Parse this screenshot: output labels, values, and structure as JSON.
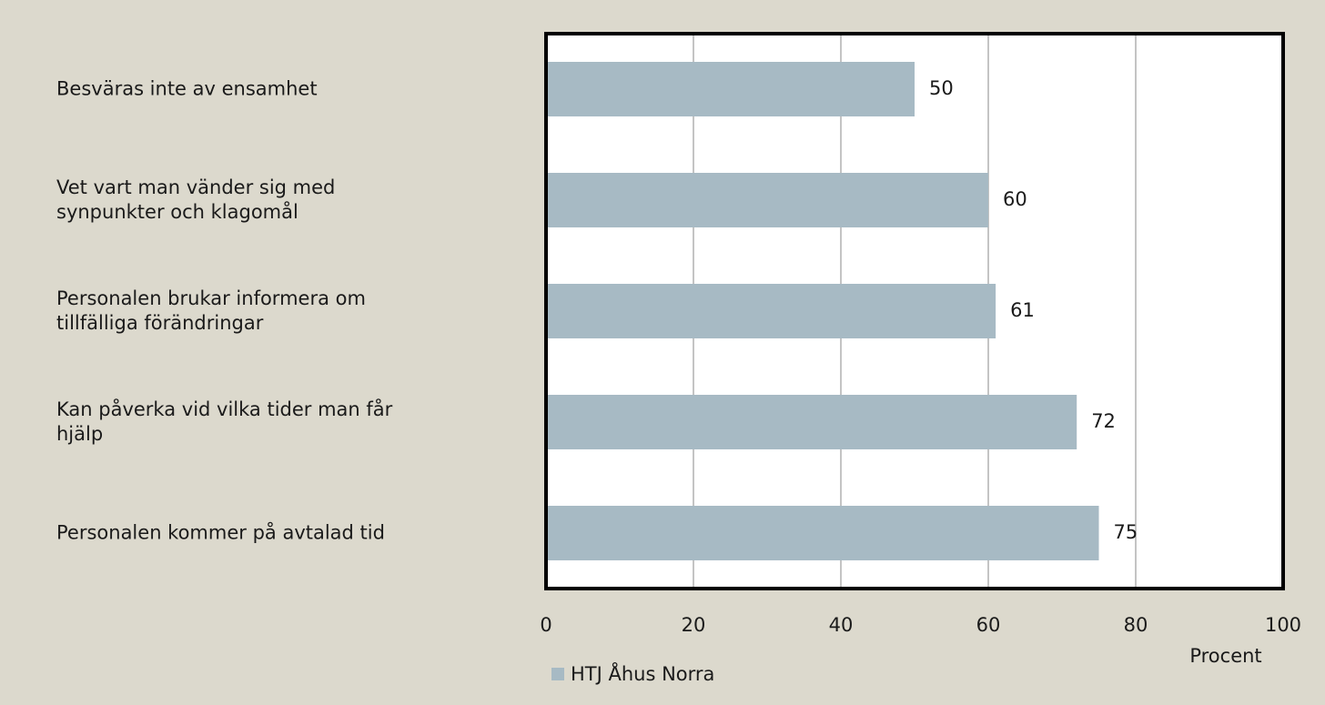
{
  "chart_data": {
    "type": "barh",
    "categories": [
      "Besväras inte av ensamhet",
      "Vet vart man vänder sig med\nsynpunkter och klagomål",
      "Personalen brukar informera om\ntillfälliga förändringar",
      "Kan påverka vid vilka tider man får\nhjälp",
      "Personalen kommer på avtalad tid"
    ],
    "series": [
      {
        "name": "HTJ Åhus Norra",
        "color": "#a7bac4",
        "values": [
          50,
          60,
          61,
          72,
          75
        ]
      }
    ],
    "xlabel": "Procent",
    "xlim": [
      0,
      100
    ],
    "xticks": [
      0,
      20,
      40,
      60,
      80,
      100
    ],
    "grid": true,
    "legend": "bottom"
  }
}
